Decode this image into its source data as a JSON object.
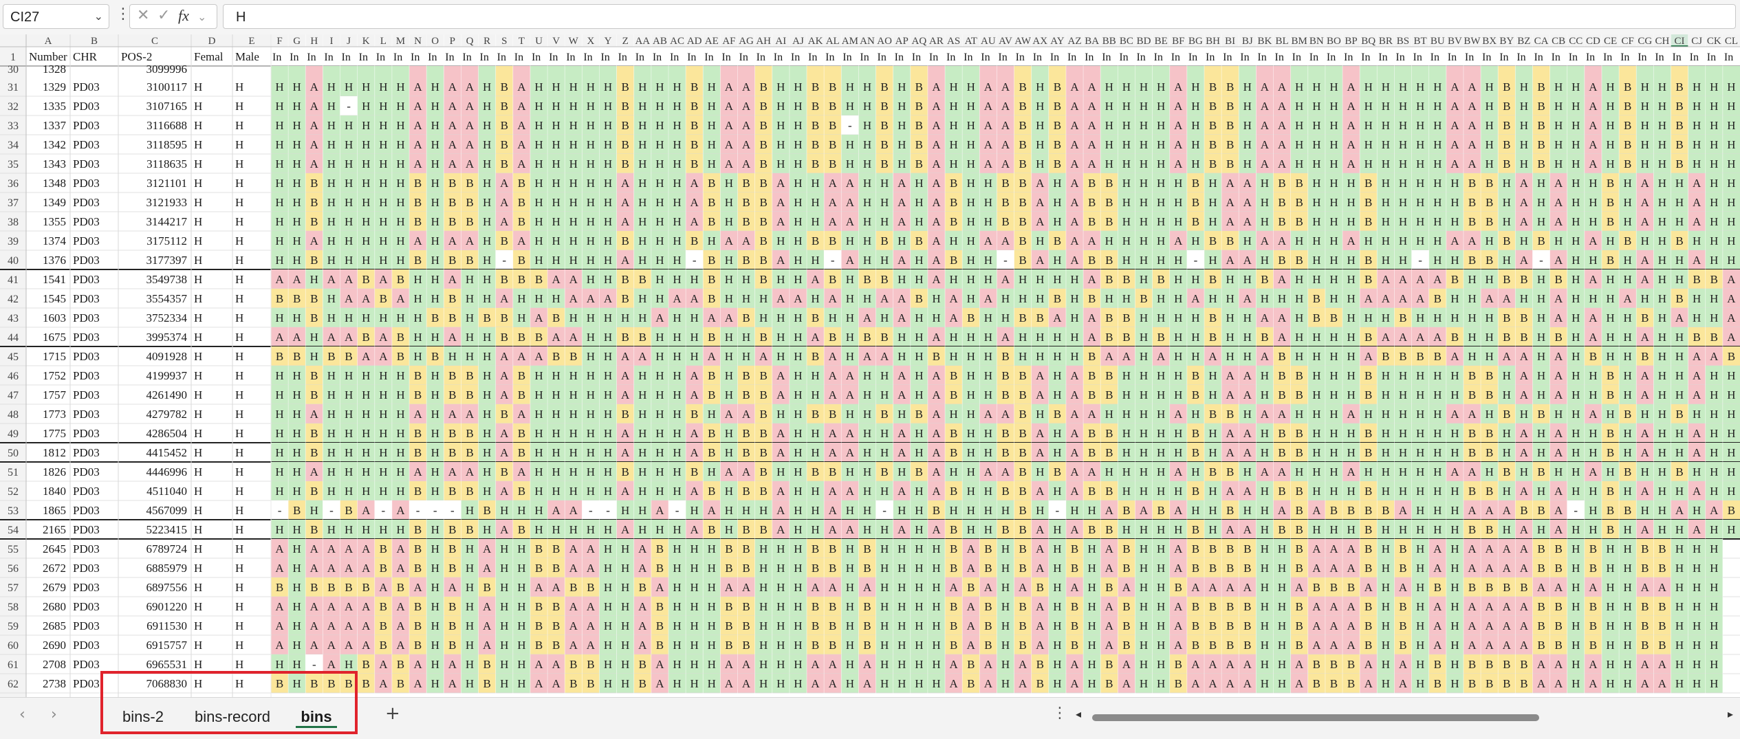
{
  "formula_bar": {
    "name_box": "CI27",
    "more": "⋮",
    "cancel_icon": "✕",
    "enter_icon": "✓",
    "fx_label": "fx",
    "fx_chevron": "⌄",
    "value": "H"
  },
  "columns": {
    "fixed_headers": [
      "A",
      "B",
      "C",
      "D",
      "E"
    ],
    "genotype_headers": [
      "F",
      "G",
      "H",
      "I",
      "J",
      "K",
      "L",
      "M",
      "N",
      "O",
      "P",
      "Q",
      "R",
      "S",
      "T",
      "U",
      "V",
      "W",
      "X",
      "Y",
      "Z",
      "AA",
      "AB",
      "AC",
      "AD",
      "AE",
      "AF",
      "AG",
      "AH",
      "AI",
      "AJ",
      "AK",
      "AL",
      "AM",
      "AN",
      "AO",
      "AP",
      "AQ",
      "AR",
      "AS",
      "AT",
      "AU",
      "AV",
      "AW",
      "AX",
      "AY",
      "AZ",
      "BA",
      "BB",
      "BC",
      "BD",
      "BE",
      "BF",
      "BG",
      "BH",
      "BI",
      "BJ",
      "BK",
      "BL",
      "BM",
      "BN",
      "BO",
      "BP",
      "BQ",
      "BR",
      "BS",
      "BT",
      "BU",
      "BV",
      "BW",
      "BX",
      "BY",
      "BZ",
      "CA",
      "CB",
      "CC",
      "CD",
      "CE",
      "CF",
      "CG",
      "CH",
      "CI",
      "CJ",
      "CK",
      "CL"
    ],
    "selected": "CI"
  },
  "header_row": {
    "row_number": "1",
    "labels": [
      "Number",
      "CHR",
      "POS-2",
      "Femal",
      "Male"
    ],
    "genotype_label": "In"
  },
  "partial_top_row": {
    "row_number": "30",
    "number": "1328",
    "pos": "3099996"
  },
  "rows": [
    {
      "n": "31",
      "num": "1329",
      "chr": "PD03",
      "pos": "3100117",
      "f": "H",
      "m": "H",
      "g": "HHAHHHHHAHAAHBAHHHHHBHHHBHAABHHBBHHBHBAHHAABHBAAHHHHAHBBHAAHHHAHHHHHAAHBHBHHAHBHHBHHH"
    },
    {
      "n": "32",
      "num": "1335",
      "chr": "PD03",
      "pos": "3107165",
      "f": "H",
      "m": "H",
      "g": "HHAH-HHHAHAAHBAHHHHHBHHHBHAABHHBBHHBHBAHHAABHBAAHHHHAHBBHAAHHHAHHHHHAAHBHBHHAHBHHBHHH"
    },
    {
      "n": "33",
      "num": "1337",
      "chr": "PD03",
      "pos": "3116688",
      "f": "H",
      "m": "H",
      "g": "HHAHHHHHAHAAHBAHHHHHBHHHBHAABHHBB-HBHBAHHAABHBAAHHHHAHBBHAAHHHAHHHHHAAHBHBHHAHBHHBHHH"
    },
    {
      "n": "34",
      "num": "1342",
      "chr": "PD03",
      "pos": "3118595",
      "f": "H",
      "m": "H",
      "g": "HHAHHHHHAHAAHBAHHHHHBHHHBHAABHHBBHHBHBAHHAABHBAAHHHHAHBBHAAHHHAHHHHHAAHBHBHHAHBHHBHHH"
    },
    {
      "n": "35",
      "num": "1343",
      "chr": "PD03",
      "pos": "3118635",
      "f": "H",
      "m": "H",
      "g": "HHAHHHHHAHAAHBAHHHHHBHHHBHAABHHBBHHBHBAHHAABHBAAHHHHAHBBHAAHHHAHHHHHAAHBHBHHAHBHHBHHH"
    },
    {
      "n": "36",
      "num": "1348",
      "chr": "PD03",
      "pos": "3121101",
      "f": "H",
      "m": "H",
      "g": "HHBHHHHHBHBBHABHHHHHAHHHABHBBAHHAAHHAHABHHBBAHABBHHHHBHAAHBBHHHBHHHHHBBHAHAHHBHAHHAHHH"
    },
    {
      "n": "37",
      "num": "1349",
      "chr": "PD03",
      "pos": "3121933",
      "f": "H",
      "m": "H",
      "g": "HHBHHHHHBHBBHABHHHHHAHHHABHBBAHHAAHHAHABHHBBAHABBHHHHBHAAHBBHHHBHHHHHBBHAHAHHBHAHHAHHH"
    },
    {
      "n": "38",
      "num": "1355",
      "chr": "PD03",
      "pos": "3144217",
      "f": "H",
      "m": "H",
      "g": "HHBHHHHHBHBBHABHHHHHAHHHABHBBAHHAAHHAHABHHBBAHABBHHHHBHAAHBBHHHBHHHHHBBHAHAHHBHAHHAHHH"
    },
    {
      "n": "39",
      "num": "1374",
      "chr": "PD03",
      "pos": "3175112",
      "f": "H",
      "m": "H",
      "g": "HHAHHHHHAHAAHBAHHHHHBHHHBHAABHHBBHHBHBAHHAABHBAAHHHHAHBBHAAHHHAHHHHHAAHBHBHHAHBHHBHHH"
    },
    {
      "n": "40",
      "num": "1376",
      "chr": "PD03",
      "pos": "3177397",
      "f": "H",
      "m": "H",
      "g": "HHBHHHHHBHBBH-BHHHHHAHHH-BHBBAHH-AHHAHABHH-BAHABBHHHH-HAAHBBHHHBHH-HHBBHA-AHHBHAHHAHHH"
    },
    {
      "n": "41",
      "num": "1541",
      "chr": "PD03",
      "pos": "3549738",
      "f": "H",
      "m": "H",
      "g": "AAHAABABHHAHHBBBAAHHBBHHHBHHBHHABHBBHHAHHHAHHHHABBHBHHBHHBAHHHHBAAAABHHBBHBHAHHAHHBBA"
    },
    {
      "n": "42",
      "num": "1545",
      "chr": "PD03",
      "pos": "3554357",
      "f": "H",
      "m": "H",
      "g": "BBBHAABAHHBHHAHHHAAABHHAABHHHAAHAHHAABHAHAHHHBHBHHBHHAHHAHHHBHHAAAABHHAAHHAHHHAHHBHHAB"
    },
    {
      "n": "43",
      "num": "1603",
      "chr": "PD03",
      "pos": "3752334",
      "f": "H",
      "m": "H",
      "g": "HHBHHHHHHBBHBBHABHHHHHAHHAABHHHBHHAHAHHABHHBBAHABBHHHHBHHAAHBBHHHBHHHHHBBHAHAHHBHAHHAH"
    },
    {
      "n": "44",
      "num": "1675",
      "chr": "PD03",
      "pos": "3995374",
      "f": "H",
      "m": "H",
      "g": "AAHAABABHHAHHBBBAAHHBBHHHBHHBHHABHBBHHAHHHAHHHHABBHBHHBHHBAHHHHBAAAABHHBBHBHAHHAHHBBA"
    },
    {
      "n": "45",
      "num": "1715",
      "chr": "PD03",
      "pos": "4091928",
      "f": "H",
      "m": "H",
      "g": "BBHBBAABHBHHHAAABBHHAAHHHAHHAHHBAHAAHHBHHHBHHHHBAAHAHHAHHABHHHHABBBBAHHAAHAHBHHBHHAAB"
    },
    {
      "n": "46",
      "num": "1752",
      "chr": "PD03",
      "pos": "4199937",
      "f": "H",
      "m": "H",
      "g": "HHBHHHHHBHBBHABHHHHHAHHHABHBBAHHAAHHAHABHHBBAHABBHHHHBHAAHBBHHHBHHHHHBBHAHAHHBHAHHAHHH"
    },
    {
      "n": "47",
      "num": "1757",
      "chr": "PD03",
      "pos": "4261490",
      "f": "H",
      "m": "H",
      "g": "HHBHHHHHBHBBHABHHHHHAHHHABHBBAHHAAHHAHABHHBBAHABBHHHHBHAAHBBHHHBHHHHHBBHAHAHHBHAHHAHHH"
    },
    {
      "n": "48",
      "num": "1773",
      "chr": "PD03",
      "pos": "4279782",
      "f": "H",
      "m": "H",
      "g": "HHAHHHHHAHAAHBAHHHHHBHHHBHAABHHBBHHBHBAHHAABHBAAHHHHAHBBHAAHHHAHHHHHAAHBHBHHAHBHHBHHH"
    },
    {
      "n": "49",
      "num": "1775",
      "chr": "PD03",
      "pos": "4286504",
      "f": "H",
      "m": "H",
      "g": "HHBHHHHHBHBBHABHHHHHAHHHABHBBAHHAAHHAHABHHBBAHABBHHHHBHAAHBBHHHBHHHHHBBHAHAHHBHAHHAHHH"
    },
    {
      "n": "50",
      "num": "1812",
      "chr": "PD03",
      "pos": "4415452",
      "f": "H",
      "m": "H",
      "g": "HHBHHHHHBHBBHABHHHHHAHHHABHBBAHHAAHHAHABHHBBAHABBHHHHBHAAHBBHHHBHHHHHBBHAHAHHBHAHHAHHH"
    },
    {
      "n": "51",
      "num": "1826",
      "chr": "PD03",
      "pos": "4446996",
      "f": "H",
      "m": "H",
      "g": "HHAHHHHHAHAAHBAHHHHHBHHHBHAABHHBBHHBHBAHHAABHBAAHHHHAHBBHAAHHHAHHHHHAAHBHBHHAHBHHBHHH"
    },
    {
      "n": "52",
      "num": "1840",
      "chr": "PD03",
      "pos": "4511040",
      "f": "H",
      "m": "H",
      "g": "HHBHHHHHBHBBHABHHHHHAHHHABHBBAHHAAHHAHABHHBBAHABBHHHHBHAAHBBHHHBHHHHHBBHAHAHHBHAHHAHHH"
    },
    {
      "n": "53",
      "num": "1865",
      "chr": "PD03",
      "pos": "4567099",
      "f": "H",
      "m": "H",
      "g": "-BH-BA-A---HBHHHAA--HHA-HAHHHAHHAHH-HHBHHHHBH-HHABABAHHBHHABABBBBAHHHAAABBA-HBBHHAHABB"
    },
    {
      "n": "54",
      "num": "2165",
      "chr": "PD03",
      "pos": "5223415",
      "f": "H",
      "m": "H",
      "g": "HHBHHHHHBHBBHABHHHHHAHHHABHBBAHHAAHHAHABHHBBAHABBHHHHBHAAHBBHHHBHHHHHBBHAHAHHBHAHHAHHH"
    },
    {
      "n": "55",
      "num": "2645",
      "chr": "PD03",
      "pos": "6789724",
      "f": "H",
      "m": "H",
      "g": "AHAAAABABHBHAHHBBAAHHABHHHBBHHHBBHBHHHHBABHBAHBHABHHABBBBHHBAAABHBHAHAAAABBHBHHBBHHH"
    },
    {
      "n": "56",
      "num": "2672",
      "chr": "PD03",
      "pos": "6885979",
      "f": "H",
      "m": "H",
      "g": "AHAAAABABHBHAHHBBAAHHABHHHBBHHHBBHBHHHHBABHBAHBHABHHABBBBHHBAAABHBHAHAAAABBHBHHBBHHH"
    },
    {
      "n": "57",
      "num": "2679",
      "chr": "PD03",
      "pos": "6897556",
      "f": "H",
      "m": "H",
      "g": "BHBBBBABAHAHBHHAABBHHBAHHHAAHHHAAHAHHHHABAHABHAHBAHHBAAAAHHABBBAHAHBHBBBBAAHAHHAAHHH"
    },
    {
      "n": "58",
      "num": "2680",
      "chr": "PD03",
      "pos": "6901220",
      "f": "H",
      "m": "H",
      "g": "AHAAAABABHBHAHHBBAAHHABHHHBBHHHBBHBHHHHBABHBAHBHABHHABBBBHHBAAABHBHAHAAAABBHBHHBBHHH"
    },
    {
      "n": "59",
      "num": "2685",
      "chr": "PD03",
      "pos": "6911530",
      "f": "H",
      "m": "H",
      "g": "AHAAAABABHBHAHHBBAAHHABHHHBBHHHBBHBHHHHBABHBAHBHABHHABBBBHHBAAABHBHAHAAAABBHBHHBBHHH"
    },
    {
      "n": "60",
      "num": "2690",
      "chr": "PD03",
      "pos": "6915757",
      "f": "H",
      "m": "H",
      "g": "AHAAAABABHBHAHHBBAAHHABHHHBBHHHBBHBHHHHBABHBAHBHABHHABBBBHHBAAABHBHAHAAAABBHBHHBBHHH"
    },
    {
      "n": "61",
      "num": "2708",
      "chr": "PD03",
      "pos": "6965531",
      "f": "H",
      "m": "H",
      "g": "HH-AHBABAHAHBHHAABBHHBAHHHAAHHHAAHAHHHHABAHABHAHBAHHBAAAAHHABBBAHAHBHBBBBAAHAHHAAHHH"
    },
    {
      "n": "62",
      "num": "2738",
      "chr": "PD03",
      "pos": "7068830",
      "f": "H",
      "m": "H",
      "g": "BHBBBBABAHAHBHHAABBHHBAHHHAAHHHAAHAHHHHABAHABHAHBAHHBAAAAHHABBBAHAHBHBBBBAAHAHHAAHHH"
    }
  ],
  "thick_borders_after_rows": [
    "40",
    "44",
    "49",
    "50",
    "53",
    "54"
  ],
  "cell_colors": {
    "A": "#f6c3c8",
    "B": "#fbe69b",
    "H": "#c7ecc4",
    "-": "#ffffff",
    "header_bg": "#f3f3f3",
    "grid_line": "#d9d9d9",
    "selected_header": "#d3e8da"
  },
  "sheet_tabs": [
    {
      "label": "bins-2",
      "active": false
    },
    {
      "label": "bins-record",
      "active": false
    },
    {
      "label": "bins",
      "active": true
    }
  ],
  "sheet_bar": {
    "prev": "‹",
    "next": "›",
    "add": "+",
    "more": "⋮",
    "scroll_left": "◂",
    "scroll_right": "▸"
  },
  "scroll_position": 0.0
}
